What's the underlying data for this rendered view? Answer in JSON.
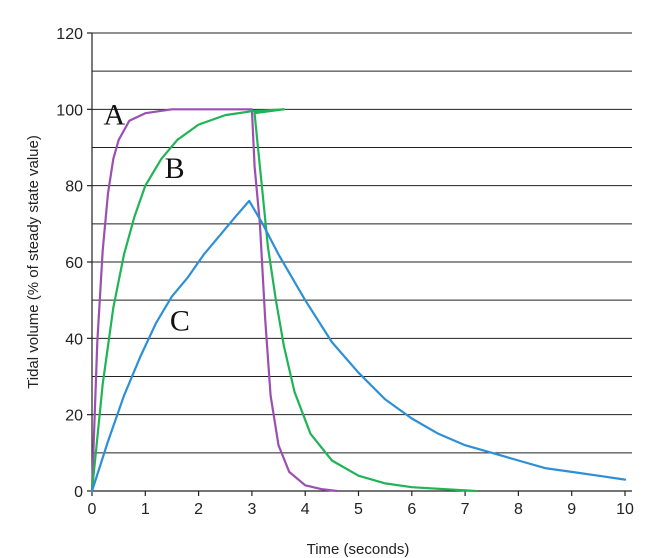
{
  "chart_data": {
    "type": "line",
    "title": "",
    "xlabel": "Time (seconds)",
    "ylabel": "Tidal volume (% of steady state value)",
    "xlim": [
      0,
      10
    ],
    "ylim": [
      0,
      120
    ],
    "x_ticks": [
      "0",
      "1",
      "2",
      "3",
      "4",
      "5",
      "6",
      "7",
      "8",
      "9",
      "10"
    ],
    "y_ticks": [
      "0",
      "20",
      "40",
      "60",
      "80",
      "100",
      "120"
    ],
    "grid": "horizontal lines every 10 units",
    "series": [
      {
        "name": "A",
        "color": "#9b4fb0",
        "points": [
          [
            0,
            0
          ],
          [
            0.1,
            39
          ],
          [
            0.2,
            63
          ],
          [
            0.3,
            78
          ],
          [
            0.4,
            87
          ],
          [
            0.5,
            92
          ],
          [
            0.7,
            97
          ],
          [
            1.0,
            99
          ],
          [
            1.5,
            100
          ],
          [
            3.0,
            100
          ],
          [
            3.05,
            85
          ],
          [
            3.15,
            70
          ],
          [
            3.25,
            45
          ],
          [
            3.35,
            25
          ],
          [
            3.5,
            12
          ],
          [
            3.7,
            5
          ],
          [
            4.0,
            1.5
          ],
          [
            4.3,
            0.5
          ],
          [
            4.6,
            0
          ]
        ]
      },
      {
        "name": "B",
        "color": "#1fb455",
        "points": [
          [
            0,
            0
          ],
          [
            0.2,
            28
          ],
          [
            0.4,
            48
          ],
          [
            0.6,
            62
          ],
          [
            0.8,
            72
          ],
          [
            1.0,
            80
          ],
          [
            1.3,
            87
          ],
          [
            1.6,
            92
          ],
          [
            2.0,
            96
          ],
          [
            2.5,
            98.5
          ],
          [
            3.0,
            99.5
          ],
          [
            3.6,
            100
          ],
          [
            3.05,
            99
          ],
          [
            3.1,
            92
          ],
          [
            3.2,
            78
          ],
          [
            3.3,
            64
          ],
          [
            3.45,
            50
          ],
          [
            3.6,
            38
          ],
          [
            3.8,
            26
          ],
          [
            4.1,
            15
          ],
          [
            4.5,
            8
          ],
          [
            5.0,
            4
          ],
          [
            5.5,
            2
          ],
          [
            6.0,
            1
          ],
          [
            6.6,
            0.5
          ],
          [
            7.2,
            0
          ]
        ]
      },
      {
        "name": "C",
        "color": "#2d8fd6",
        "points": [
          [
            0,
            0
          ],
          [
            0.3,
            13
          ],
          [
            0.6,
            25
          ],
          [
            0.9,
            35
          ],
          [
            1.2,
            44
          ],
          [
            1.5,
            51
          ],
          [
            1.8,
            56
          ],
          [
            2.1,
            62
          ],
          [
            2.4,
            67
          ],
          [
            2.7,
            72
          ],
          [
            2.95,
            76
          ],
          [
            3.2,
            70
          ],
          [
            3.5,
            62
          ],
          [
            4.0,
            50
          ],
          [
            4.5,
            39
          ],
          [
            5.0,
            31
          ],
          [
            5.5,
            24
          ],
          [
            6.0,
            19
          ],
          [
            6.5,
            15
          ],
          [
            7.0,
            12
          ],
          [
            7.5,
            10
          ],
          [
            8.0,
            8
          ],
          [
            8.5,
            6
          ],
          [
            9.0,
            5
          ],
          [
            9.5,
            4
          ],
          [
            10.0,
            3
          ]
        ]
      }
    ],
    "annotations": [
      {
        "text": "A",
        "x": 0.42,
        "y": 96
      },
      {
        "text": "B",
        "x": 1.55,
        "y": 82
      },
      {
        "text": "C",
        "x": 1.65,
        "y": 42
      }
    ]
  }
}
